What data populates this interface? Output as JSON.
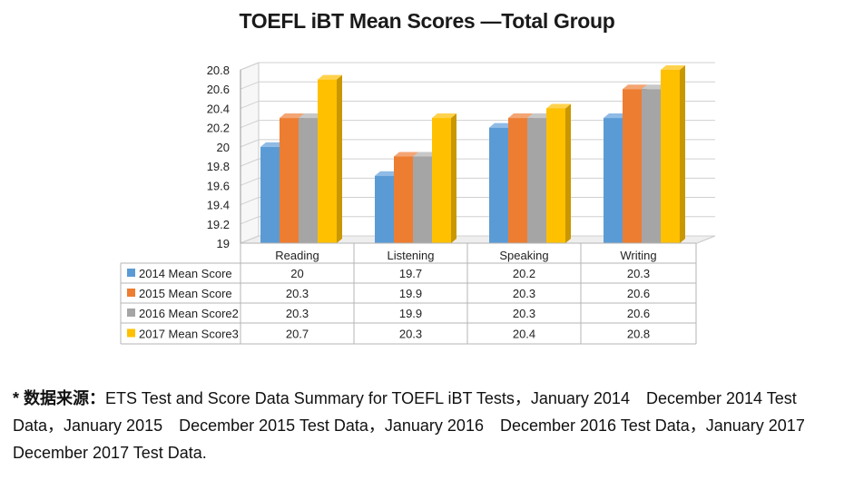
{
  "chart_data": {
    "type": "bar",
    "title": "TOEFL iBT Mean Scores —Total Group",
    "categories": [
      "Reading",
      "Listening",
      "Speaking",
      "Writing"
    ],
    "series": [
      {
        "name": "2014 Mean Score",
        "values": [
          20,
          19.7,
          20.2,
          20.3
        ],
        "color": "#5b9bd5",
        "side": "#3f74a8",
        "top": "#8fbbe6"
      },
      {
        "name": "2015 Mean Score",
        "values": [
          20.3,
          19.9,
          20.3,
          20.6
        ],
        "color": "#ed7d31",
        "side": "#b85a1c",
        "top": "#f4a574"
      },
      {
        "name": "2016 Mean Score2",
        "values": [
          20.3,
          19.9,
          20.3,
          20.6
        ],
        "color": "#a5a5a5",
        "side": "#7f7f7f",
        "top": "#c8c8c8"
      },
      {
        "name": "2017 Mean Score3",
        "values": [
          20.7,
          20.3,
          20.4,
          20.8
        ],
        "color": "#ffc000",
        "side": "#c99700",
        "top": "#ffd24d"
      }
    ],
    "value_labels": [
      [
        "20",
        "19.7",
        "20.2",
        "20.3"
      ],
      [
        "20.3",
        "19.9",
        "20.3",
        "20.6"
      ],
      [
        "20.3",
        "19.9",
        "20.3",
        "20.6"
      ],
      [
        "20.7",
        "20.3",
        "20.4",
        "20.8"
      ]
    ],
    "y_ticks": [
      "19",
      "19.2",
      "19.4",
      "19.6",
      "19.8",
      "20",
      "20.2",
      "20.4",
      "20.6",
      "20.8"
    ],
    "ylim": [
      19,
      20.8
    ],
    "grid": true,
    "legend": "data-table",
    "style": "3d-clustered-column"
  },
  "source_note": {
    "star": "*",
    "lead": "数据来源：",
    "text": "ETS Test and Score Data Summary for TOEFL iBT Tests，January 2014　December 2014 Test Data，January 2015　December 2015 Test Data，January 2016　December 2016 Test Data，January 2017　December 2017 Test Data."
  }
}
